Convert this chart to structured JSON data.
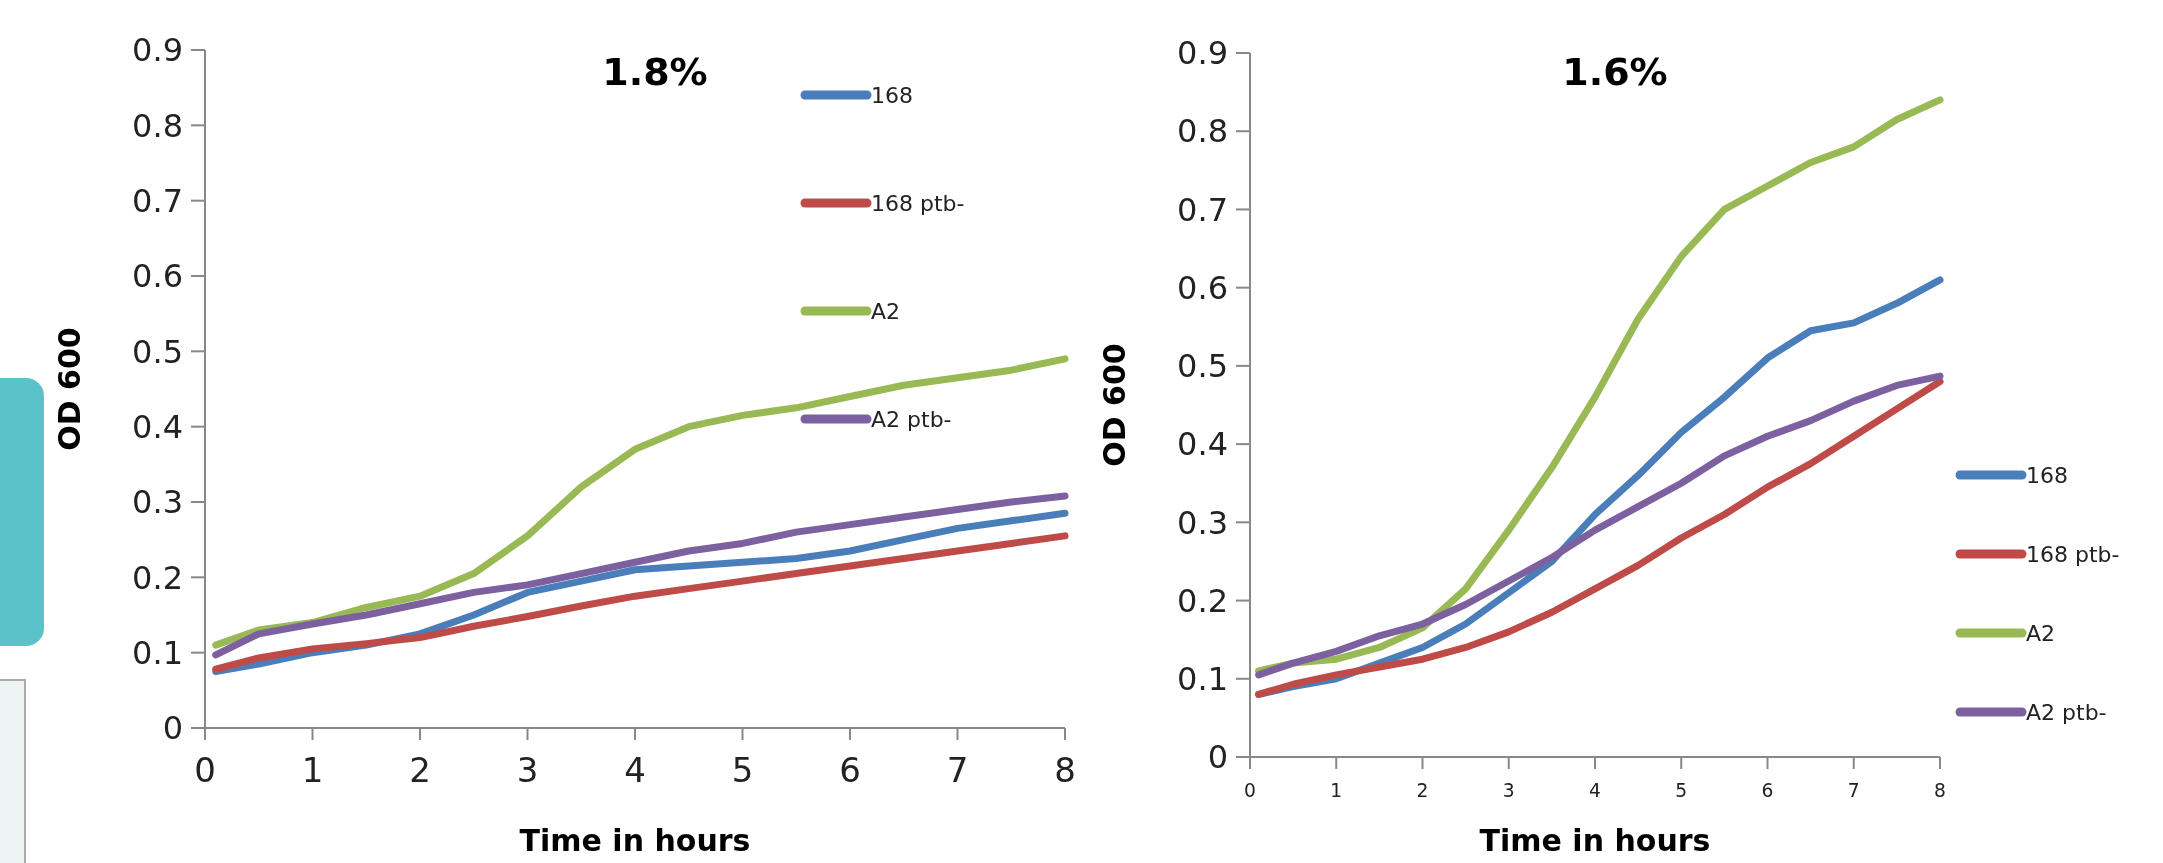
{
  "chart_data": [
    {
      "type": "line",
      "title": "1.8%",
      "xlabel": "Time in hours",
      "ylabel": "OD 600",
      "x": [
        0.1,
        0.5,
        1,
        1.5,
        2,
        2.5,
        3,
        3.5,
        4,
        4.5,
        5,
        5.5,
        6,
        6.5,
        7,
        7.5,
        8
      ],
      "xlim": [
        0,
        8
      ],
      "xticks": [
        0,
        1,
        2,
        3,
        4,
        5,
        6,
        7,
        8
      ],
      "ylim": [
        0,
        0.9
      ],
      "yticks": [
        0,
        0.1,
        0.2,
        0.3,
        0.4,
        0.5,
        0.6,
        0.7,
        0.8,
        0.9
      ],
      "grid": false,
      "legend": "top right",
      "marker": "none",
      "line_style": "solid",
      "series": [
        {
          "name": "168",
          "color": "#4a7ebb",
          "values": [
            0.075,
            0.085,
            0.1,
            0.11,
            0.125,
            0.15,
            0.18,
            0.195,
            0.21,
            0.215,
            0.22,
            0.225,
            0.235,
            0.25,
            0.265,
            0.275,
            0.285
          ]
        },
        {
          "name": "168 ptb-",
          "color": "#be4b48",
          "values": [
            0.078,
            0.093,
            0.105,
            0.112,
            0.12,
            0.135,
            0.148,
            0.162,
            0.175,
            0.185,
            0.195,
            0.205,
            0.215,
            0.225,
            0.235,
            0.245,
            0.255
          ]
        },
        {
          "name": "A2",
          "color": "#98b954",
          "values": [
            0.11,
            0.13,
            0.14,
            0.16,
            0.175,
            0.205,
            0.255,
            0.32,
            0.37,
            0.4,
            0.415,
            0.425,
            0.44,
            0.455,
            0.465,
            0.475,
            0.49
          ]
        },
        {
          "name": "A2 ptb-",
          "color": "#7d60a0",
          "values": [
            0.097,
            0.125,
            0.138,
            0.15,
            0.165,
            0.18,
            0.19,
            0.205,
            0.22,
            0.235,
            0.245,
            0.26,
            0.27,
            0.28,
            0.29,
            0.3,
            0.308
          ]
        }
      ]
    },
    {
      "type": "line",
      "title": "1.6%",
      "xlabel": "Time in hours",
      "ylabel": "OD 600",
      "x": [
        0.1,
        0.5,
        1,
        1.5,
        2,
        2.5,
        3,
        3.5,
        4,
        4.5,
        5,
        5.5,
        6,
        6.5,
        7,
        7.5,
        8
      ],
      "xlim": [
        0,
        8
      ],
      "xticks": [
        0,
        1,
        2,
        3,
        4,
        5,
        6,
        7,
        8
      ],
      "ylim": [
        0,
        0.9
      ],
      "yticks": [
        0,
        0.1,
        0.2,
        0.3,
        0.4,
        0.5,
        0.6,
        0.7,
        0.8,
        0.9
      ],
      "grid": false,
      "legend": "right",
      "marker": "none",
      "line_style": "solid",
      "series": [
        {
          "name": "168",
          "color": "#4a7ebb",
          "values": [
            0.08,
            0.09,
            0.1,
            0.12,
            0.14,
            0.17,
            0.21,
            0.25,
            0.31,
            0.36,
            0.415,
            0.46,
            0.51,
            0.545,
            0.555,
            0.58,
            0.61
          ]
        },
        {
          "name": "168 ptb-",
          "color": "#be4b48",
          "values": [
            0.08,
            0.093,
            0.105,
            0.115,
            0.125,
            0.14,
            0.16,
            0.185,
            0.215,
            0.245,
            0.28,
            0.31,
            0.345,
            0.375,
            0.41,
            0.445,
            0.48
          ]
        },
        {
          "name": "A2",
          "color": "#98b954",
          "values": [
            0.11,
            0.12,
            0.125,
            0.14,
            0.165,
            0.215,
            0.29,
            0.37,
            0.46,
            0.56,
            0.64,
            0.7,
            0.73,
            0.76,
            0.78,
            0.815,
            0.84
          ]
        },
        {
          "name": "A2 ptb-",
          "color": "#7d60a0",
          "values": [
            0.105,
            0.12,
            0.135,
            0.155,
            0.17,
            0.195,
            0.225,
            0.255,
            0.29,
            0.32,
            0.35,
            0.385,
            0.41,
            0.43,
            0.455,
            0.475,
            0.487
          ]
        }
      ]
    }
  ]
}
